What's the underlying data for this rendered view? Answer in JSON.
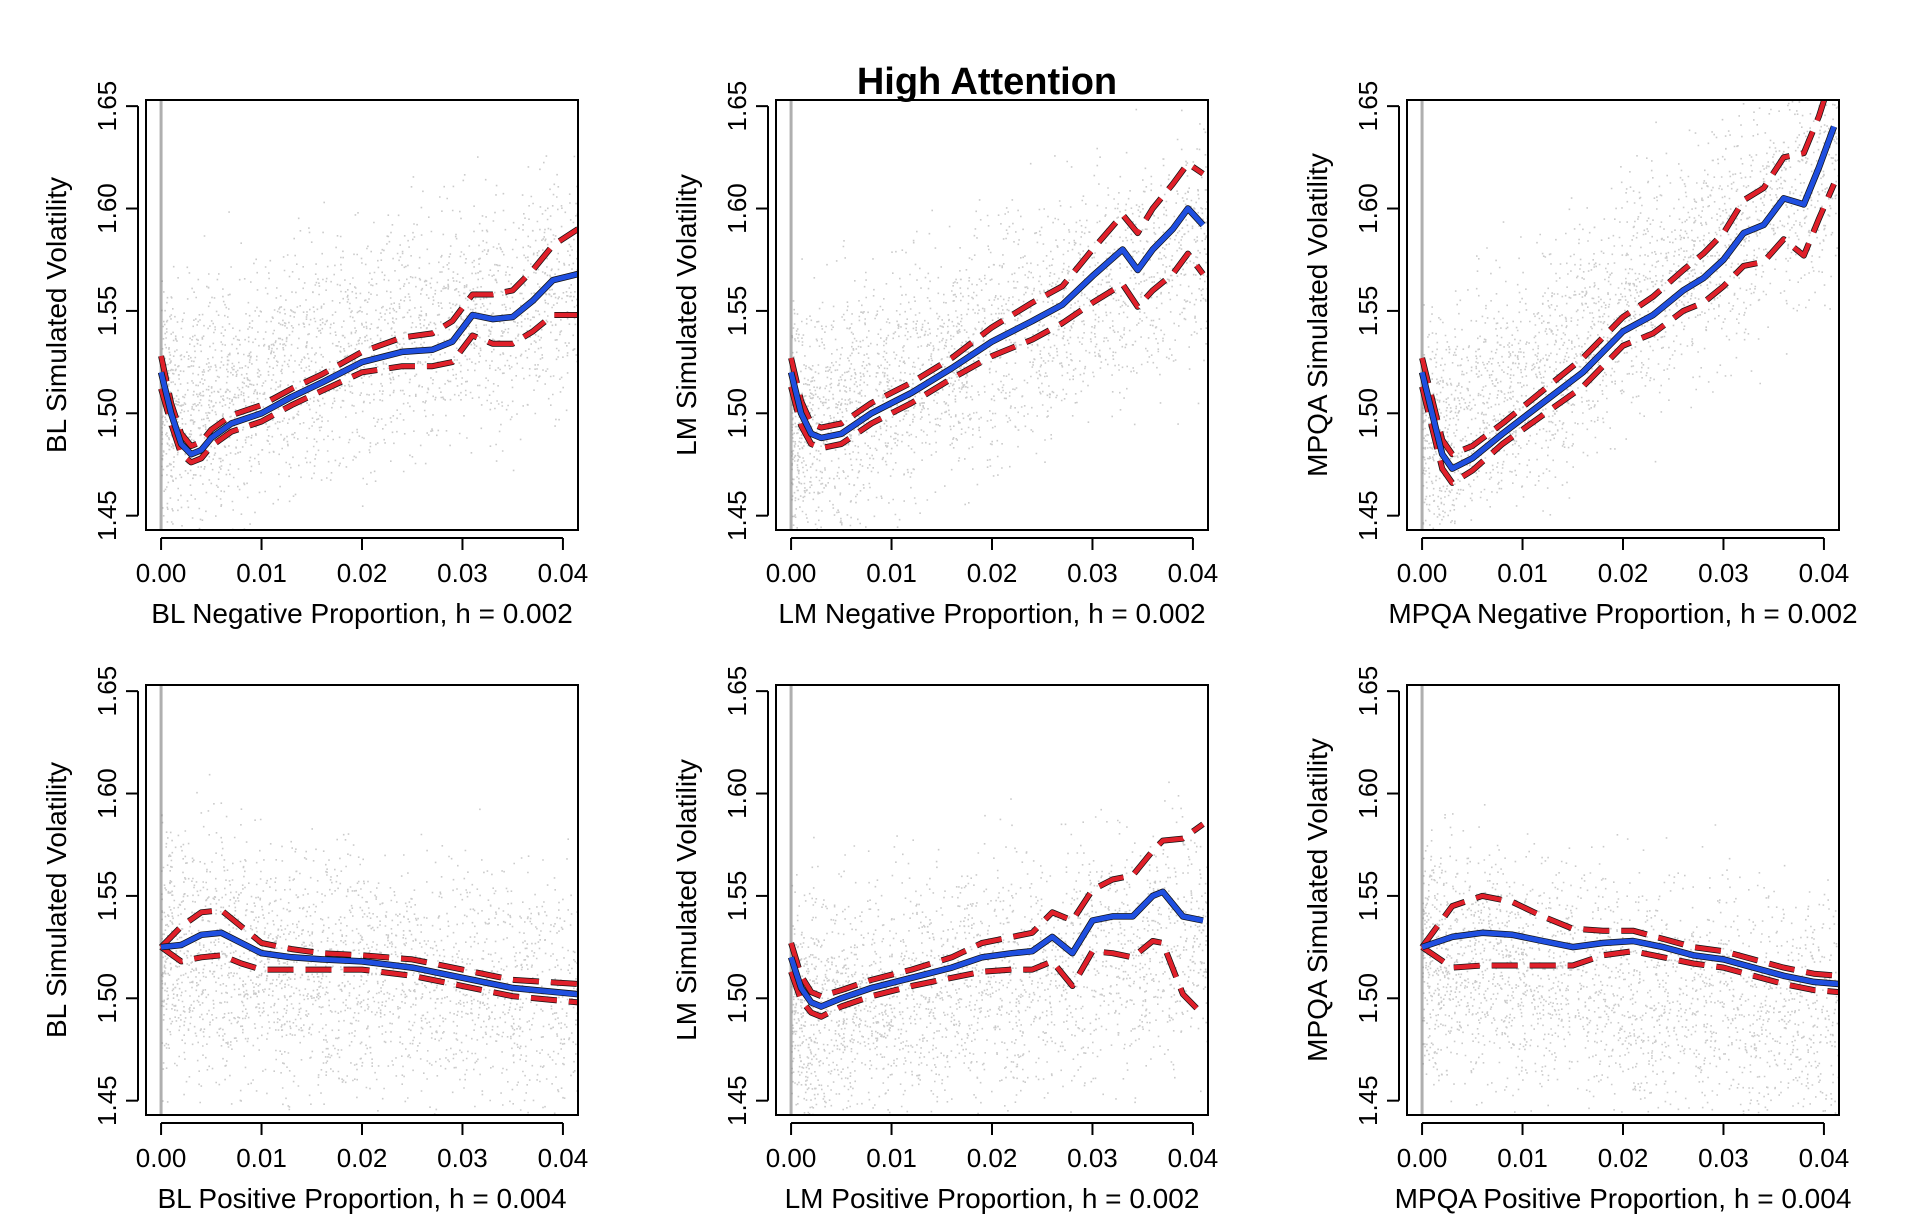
{
  "figure": {
    "title": "High Attention"
  },
  "chart_data": [
    {
      "type": "scatter",
      "xlabel": "BL Negative Proportion, h = 0.002",
      "ylabel": "BL Simulated Volatility",
      "xlim": [
        -0.0015,
        0.0415
      ],
      "ylim": [
        1.443,
        1.653
      ],
      "xticks": [
        0.0,
        0.01,
        0.02,
        0.03,
        0.04
      ],
      "xtick_labels": [
        "0.00",
        "0.01",
        "0.02",
        "0.03",
        "0.04"
      ],
      "yticks": [
        1.45,
        1.5,
        1.55,
        1.6,
        1.65
      ],
      "ytick_labels": [
        "1.45",
        "1.50",
        "1.55",
        "1.60",
        "1.65"
      ],
      "scatter_center": [
        [
          0.0,
          1.5
        ],
        [
          0.04,
          1.56
        ]
      ],
      "series": [
        {
          "x": [
            0.0,
            0.001,
            0.002,
            0.003,
            0.004,
            0.005,
            0.007,
            0.01,
            0.013,
            0.016,
            0.02,
            0.024,
            0.027,
            0.029,
            0.031,
            0.033,
            0.035,
            0.037,
            0.039,
            0.0415
          ],
          "values": [
            1.52,
            1.5,
            1.485,
            1.48,
            1.482,
            1.488,
            1.495,
            1.5,
            1.508,
            1.515,
            1.525,
            1.53,
            1.531,
            1.535,
            1.548,
            1.546,
            1.547,
            1.555,
            1.565,
            1.568
          ],
          "color": "#1f4fe0"
        },
        {
          "x": [
            0.0,
            0.001,
            0.002,
            0.003,
            0.004,
            0.005,
            0.007,
            0.01,
            0.013,
            0.016,
            0.02,
            0.024,
            0.027,
            0.029,
            0.031,
            0.033,
            0.035,
            0.037,
            0.039,
            0.0415
          ],
          "values": [
            1.528,
            1.505,
            1.49,
            1.484,
            1.486,
            1.492,
            1.499,
            1.504,
            1.512,
            1.519,
            1.53,
            1.537,
            1.539,
            1.545,
            1.558,
            1.558,
            1.56,
            1.57,
            1.582,
            1.59
          ],
          "color": "#e0202a"
        },
        {
          "x": [
            0.0,
            0.001,
            0.002,
            0.003,
            0.004,
            0.005,
            0.007,
            0.01,
            0.013,
            0.016,
            0.02,
            0.024,
            0.027,
            0.029,
            0.031,
            0.033,
            0.035,
            0.037,
            0.039,
            0.0415
          ],
          "values": [
            1.512,
            1.495,
            1.48,
            1.476,
            1.478,
            1.484,
            1.491,
            1.496,
            1.504,
            1.511,
            1.52,
            1.523,
            1.523,
            1.525,
            1.538,
            1.534,
            1.534,
            1.54,
            1.548,
            1.548
          ],
          "color": "#e0202a"
        }
      ]
    },
    {
      "type": "scatter",
      "xlabel": "LM Negative Proportion, h = 0.002",
      "ylabel": "LM Simulated Volatility",
      "xlim": [
        -0.0015,
        0.0415
      ],
      "ylim": [
        1.443,
        1.653
      ],
      "xticks": [
        0.0,
        0.01,
        0.02,
        0.03,
        0.04
      ],
      "xtick_labels": [
        "0.00",
        "0.01",
        "0.02",
        "0.03",
        "0.04"
      ],
      "yticks": [
        1.45,
        1.5,
        1.55,
        1.6,
        1.65
      ],
      "ytick_labels": [
        "1.45",
        "1.50",
        "1.55",
        "1.60",
        "1.65"
      ],
      "scatter_center": [
        [
          0.0,
          1.49
        ],
        [
          0.04,
          1.58
        ]
      ],
      "series": [
        {
          "x": [
            0.0,
            0.001,
            0.002,
            0.003,
            0.005,
            0.008,
            0.012,
            0.016,
            0.02,
            0.024,
            0.027,
            0.03,
            0.033,
            0.0345,
            0.036,
            0.038,
            0.0395,
            0.041
          ],
          "values": [
            1.52,
            1.5,
            1.49,
            1.488,
            1.49,
            1.5,
            1.51,
            1.522,
            1.535,
            1.545,
            1.553,
            1.567,
            1.58,
            1.57,
            1.58,
            1.59,
            1.6,
            1.592
          ],
          "color": "#1f4fe0"
        },
        {
          "x": [
            0.0,
            0.001,
            0.002,
            0.003,
            0.005,
            0.008,
            0.012,
            0.016,
            0.02,
            0.024,
            0.027,
            0.03,
            0.033,
            0.0345,
            0.036,
            0.038,
            0.0395,
            0.041
          ],
          "values": [
            1.527,
            1.506,
            1.495,
            1.493,
            1.495,
            1.505,
            1.515,
            1.527,
            1.542,
            1.554,
            1.562,
            1.58,
            1.597,
            1.588,
            1.6,
            1.612,
            1.622,
            1.617
          ],
          "color": "#e0202a"
        },
        {
          "x": [
            0.0,
            0.001,
            0.002,
            0.003,
            0.005,
            0.008,
            0.012,
            0.016,
            0.02,
            0.024,
            0.027,
            0.03,
            0.033,
            0.0345,
            0.036,
            0.038,
            0.0395,
            0.041
          ],
          "values": [
            1.513,
            1.494,
            1.485,
            1.483,
            1.485,
            1.495,
            1.505,
            1.517,
            1.528,
            1.536,
            1.544,
            1.554,
            1.563,
            1.552,
            1.56,
            1.568,
            1.578,
            1.568
          ],
          "color": "#e0202a"
        }
      ]
    },
    {
      "type": "scatter",
      "xlabel": "MPQA Negative Proportion, h = 0.002",
      "ylabel": "MPQA Simulated Volatility",
      "xlim": [
        -0.0015,
        0.0415
      ],
      "ylim": [
        1.443,
        1.653
      ],
      "xticks": [
        0.0,
        0.01,
        0.02,
        0.03,
        0.04
      ],
      "xtick_labels": [
        "0.00",
        "0.01",
        "0.02",
        "0.03",
        "0.04"
      ],
      "yticks": [
        1.45,
        1.5,
        1.55,
        1.6,
        1.65
      ],
      "ytick_labels": [
        "1.45",
        "1.50",
        "1.55",
        "1.60",
        "1.65"
      ],
      "scatter_center": [
        [
          0.0,
          1.48
        ],
        [
          0.04,
          1.62
        ]
      ],
      "series": [
        {
          "x": [
            0.0,
            0.001,
            0.002,
            0.003,
            0.005,
            0.008,
            0.012,
            0.016,
            0.018,
            0.02,
            0.023,
            0.026,
            0.028,
            0.03,
            0.032,
            0.034,
            0.036,
            0.038,
            0.0395,
            0.041
          ],
          "values": [
            1.52,
            1.5,
            1.48,
            1.473,
            1.478,
            1.49,
            1.505,
            1.52,
            1.53,
            1.54,
            1.548,
            1.56,
            1.566,
            1.575,
            1.588,
            1.592,
            1.605,
            1.602,
            1.62,
            1.64
          ],
          "color": "#1f4fe0"
        },
        {
          "x": [
            0.0,
            0.001,
            0.002,
            0.003,
            0.005,
            0.008,
            0.012,
            0.016,
            0.018,
            0.02,
            0.023,
            0.026,
            0.028,
            0.03,
            0.032,
            0.034,
            0.036,
            0.038,
            0.0395,
            0.041
          ],
          "values": [
            1.527,
            1.507,
            1.487,
            1.48,
            1.484,
            1.495,
            1.511,
            1.527,
            1.537,
            1.547,
            1.557,
            1.57,
            1.578,
            1.588,
            1.604,
            1.61,
            1.625,
            1.627,
            1.645,
            1.668
          ],
          "color": "#e0202a"
        },
        {
          "x": [
            0.0,
            0.001,
            0.002,
            0.003,
            0.005,
            0.008,
            0.012,
            0.016,
            0.018,
            0.02,
            0.023,
            0.026,
            0.028,
            0.03,
            0.032,
            0.034,
            0.036,
            0.038,
            0.0395,
            0.041
          ],
          "values": [
            1.513,
            1.493,
            1.473,
            1.466,
            1.472,
            1.485,
            1.499,
            1.513,
            1.523,
            1.533,
            1.539,
            1.55,
            1.554,
            1.562,
            1.572,
            1.574,
            1.585,
            1.577,
            1.595,
            1.612
          ],
          "color": "#e0202a"
        }
      ]
    },
    {
      "type": "scatter",
      "xlabel": "BL Positive Proportion, h = 0.004",
      "ylabel": "BL Simulated Volatility",
      "xlim": [
        -0.0015,
        0.0415
      ],
      "ylim": [
        1.443,
        1.653
      ],
      "xticks": [
        0.0,
        0.01,
        0.02,
        0.03,
        0.04
      ],
      "xtick_labels": [
        "0.00",
        "0.01",
        "0.02",
        "0.03",
        "0.04"
      ],
      "yticks": [
        1.45,
        1.5,
        1.55,
        1.6,
        1.65
      ],
      "ytick_labels": [
        "1.45",
        "1.50",
        "1.55",
        "1.60",
        "1.65"
      ],
      "scatter_center": [
        [
          0.0,
          1.52
        ],
        [
          0.04,
          1.5
        ]
      ],
      "series": [
        {
          "x": [
            0.0,
            0.002,
            0.004,
            0.006,
            0.008,
            0.01,
            0.013,
            0.016,
            0.02,
            0.025,
            0.03,
            0.035,
            0.0415
          ],
          "values": [
            1.525,
            1.526,
            1.531,
            1.532,
            1.527,
            1.522,
            1.52,
            1.519,
            1.518,
            1.515,
            1.51,
            1.505,
            1.502
          ],
          "color": "#1f4fe0"
        },
        {
          "x": [
            0.0,
            0.002,
            0.004,
            0.006,
            0.008,
            0.01,
            0.013,
            0.016,
            0.02,
            0.025,
            0.03,
            0.035,
            0.0415
          ],
          "values": [
            1.525,
            1.535,
            1.542,
            1.543,
            1.535,
            1.527,
            1.524,
            1.522,
            1.521,
            1.519,
            1.514,
            1.509,
            1.507
          ],
          "color": "#e0202a"
        },
        {
          "x": [
            0.0,
            0.002,
            0.004,
            0.006,
            0.008,
            0.01,
            0.013,
            0.016,
            0.02,
            0.025,
            0.03,
            0.035,
            0.0415
          ],
          "values": [
            1.525,
            1.518,
            1.52,
            1.521,
            1.517,
            1.514,
            1.514,
            1.514,
            1.514,
            1.511,
            1.506,
            1.501,
            1.498
          ],
          "color": "#e0202a"
        }
      ]
    },
    {
      "type": "scatter",
      "xlabel": "LM Positive Proportion, h = 0.002",
      "ylabel": "LM Simulated Volatility",
      "xlim": [
        -0.0015,
        0.0415
      ],
      "ylim": [
        1.443,
        1.653
      ],
      "xticks": [
        0.0,
        0.01,
        0.02,
        0.03,
        0.04
      ],
      "xtick_labels": [
        "0.00",
        "0.01",
        "0.02",
        "0.03",
        "0.04"
      ],
      "yticks": [
        1.45,
        1.5,
        1.55,
        1.6,
        1.65
      ],
      "ytick_labels": [
        "1.45",
        "1.50",
        "1.55",
        "1.60",
        "1.65"
      ],
      "scatter_center": [
        [
          0.0,
          1.49
        ],
        [
          0.04,
          1.53
        ]
      ],
      "series": [
        {
          "x": [
            0.0,
            0.001,
            0.002,
            0.003,
            0.005,
            0.008,
            0.012,
            0.016,
            0.019,
            0.022,
            0.024,
            0.026,
            0.028,
            0.03,
            0.032,
            0.034,
            0.036,
            0.037,
            0.039,
            0.041
          ],
          "values": [
            1.52,
            1.505,
            1.498,
            1.496,
            1.5,
            1.505,
            1.51,
            1.515,
            1.52,
            1.522,
            1.523,
            1.53,
            1.522,
            1.538,
            1.54,
            1.54,
            1.55,
            1.552,
            1.54,
            1.538
          ],
          "color": "#1f4fe0"
        },
        {
          "x": [
            0.0,
            0.001,
            0.002,
            0.003,
            0.005,
            0.008,
            0.012,
            0.016,
            0.019,
            0.022,
            0.024,
            0.026,
            0.028,
            0.03,
            0.032,
            0.034,
            0.036,
            0.037,
            0.039,
            0.041
          ],
          "values": [
            1.527,
            1.511,
            1.503,
            1.501,
            1.504,
            1.509,
            1.514,
            1.52,
            1.527,
            1.53,
            1.532,
            1.542,
            1.538,
            1.553,
            1.558,
            1.56,
            1.572,
            1.577,
            1.578,
            1.585
          ],
          "color": "#e0202a"
        },
        {
          "x": [
            0.0,
            0.001,
            0.002,
            0.003,
            0.005,
            0.008,
            0.012,
            0.016,
            0.019,
            0.022,
            0.024,
            0.026,
            0.028,
            0.03,
            0.032,
            0.034,
            0.036,
            0.037,
            0.039,
            0.041
          ],
          "values": [
            1.513,
            1.499,
            1.493,
            1.491,
            1.496,
            1.501,
            1.506,
            1.51,
            1.513,
            1.514,
            1.514,
            1.518,
            1.506,
            1.523,
            1.522,
            1.52,
            1.528,
            1.527,
            1.502,
            1.492
          ],
          "color": "#e0202a"
        }
      ]
    },
    {
      "type": "scatter",
      "xlabel": "MPQA Positive Proportion, h = 0.004",
      "ylabel": "MPQA Simulated Volatility",
      "xlim": [
        -0.0015,
        0.0415
      ],
      "ylim": [
        1.443,
        1.653
      ],
      "xticks": [
        0.0,
        0.01,
        0.02,
        0.03,
        0.04
      ],
      "xtick_labels": [
        "0.00",
        "0.01",
        "0.02",
        "0.03",
        "0.04"
      ],
      "yticks": [
        1.45,
        1.5,
        1.55,
        1.6,
        1.65
      ],
      "ytick_labels": [
        "1.45",
        "1.50",
        "1.55",
        "1.60",
        "1.65"
      ],
      "scatter_center": [
        [
          0.0,
          1.52
        ],
        [
          0.04,
          1.49
        ]
      ],
      "series": [
        {
          "x": [
            0.0,
            0.003,
            0.006,
            0.009,
            0.012,
            0.015,
            0.018,
            0.021,
            0.024,
            0.027,
            0.03,
            0.033,
            0.036,
            0.039,
            0.0415
          ],
          "values": [
            1.525,
            1.53,
            1.532,
            1.531,
            1.528,
            1.525,
            1.527,
            1.528,
            1.525,
            1.521,
            1.519,
            1.515,
            1.511,
            1.508,
            1.507
          ],
          "color": "#1f4fe0"
        },
        {
          "x": [
            0.0,
            0.003,
            0.006,
            0.009,
            0.012,
            0.015,
            0.018,
            0.021,
            0.024,
            0.027,
            0.03,
            0.033,
            0.036,
            0.039,
            0.0415
          ],
          "values": [
            1.525,
            1.545,
            1.55,
            1.547,
            1.54,
            1.534,
            1.533,
            1.533,
            1.529,
            1.525,
            1.523,
            1.519,
            1.515,
            1.512,
            1.511
          ],
          "color": "#e0202a"
        },
        {
          "x": [
            0.0,
            0.003,
            0.006,
            0.009,
            0.012,
            0.015,
            0.018,
            0.021,
            0.024,
            0.027,
            0.03,
            0.033,
            0.036,
            0.039,
            0.0415
          ],
          "values": [
            1.525,
            1.515,
            1.516,
            1.516,
            1.516,
            1.516,
            1.521,
            1.523,
            1.52,
            1.517,
            1.515,
            1.511,
            1.507,
            1.504,
            1.503
          ],
          "color": "#e0202a"
        }
      ]
    }
  ]
}
